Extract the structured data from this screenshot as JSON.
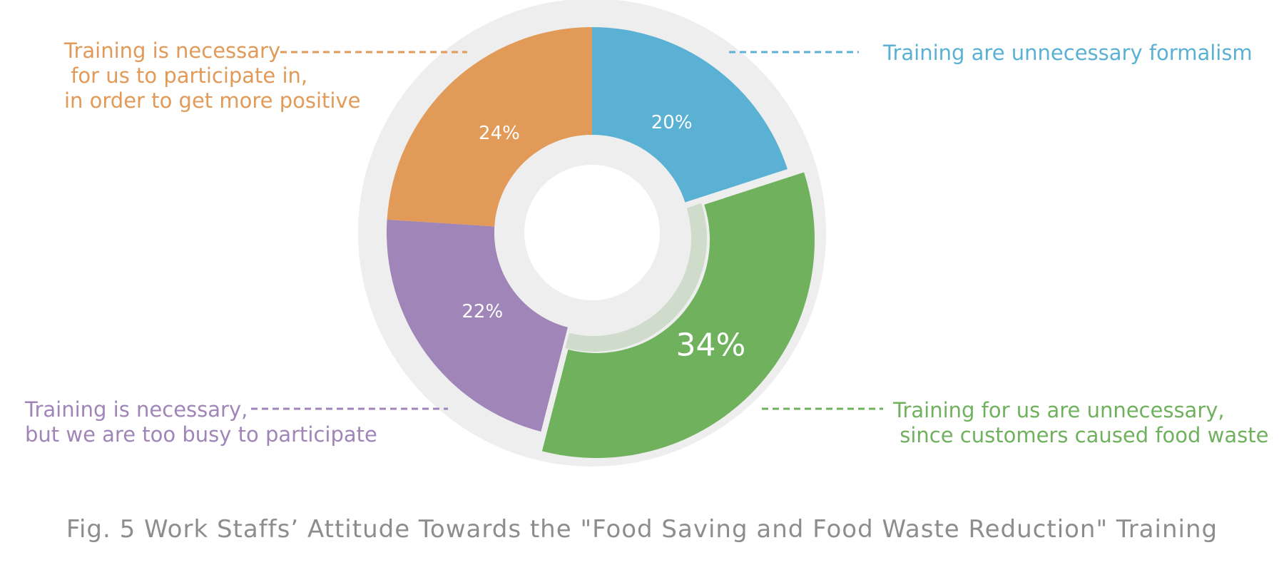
{
  "colors": {
    "track": "#eeeeee",
    "hole": "#ffffff",
    "inner_ring": "#eeeeee",
    "shadow": "#cfdccb",
    "caption": "#8d8d8d"
  },
  "chart_data": {
    "type": "pie",
    "variant": "donut",
    "title": "Fig. 5 Work Staffs’ Attitude Towards the \"Food Saving and Food Waste Reduction\" Training",
    "start": "top",
    "direction": "clockwise",
    "slices": [
      {
        "label_lines": [
          "Training are unnecessary formalism"
        ],
        "value": 20,
        "value_label": "20%",
        "color": "#5ab1d4",
        "callout_side": "right"
      },
      {
        "label_lines": [
          "Training for us are unnecessary,",
          " since customers caused food waste"
        ],
        "value": 34,
        "value_label": "34%",
        "color": "#6fb15d",
        "callout_side": "right",
        "highlighted": true
      },
      {
        "label_lines": [
          "Training is necessary,",
          "but we are too busy to participate"
        ],
        "value": 22,
        "value_label": "22%",
        "color": "#a085b8",
        "callout_side": "left"
      },
      {
        "label_lines": [
          "Training is necessary",
          " for us to participate in,",
          "in order to get more positive"
        ],
        "value": 24,
        "value_label": "24%",
        "color": "#e19a58",
        "callout_side": "left"
      }
    ]
  }
}
